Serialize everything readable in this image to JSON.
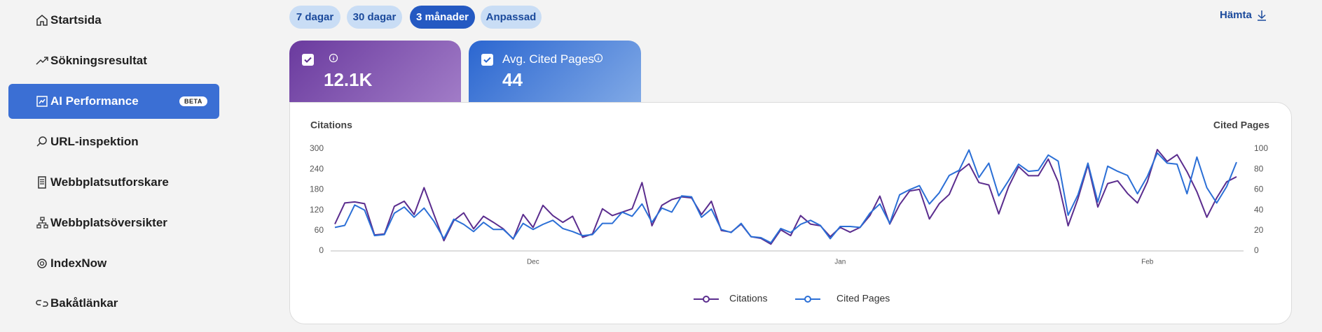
{
  "sidebar": {
    "items": [
      {
        "label": "Startsida"
      },
      {
        "label": "Sökningsresultat"
      },
      {
        "label": "AI Performance",
        "badge": "BETA"
      },
      {
        "label": "URL-inspektion"
      },
      {
        "label": "Webbplatsutforskare"
      },
      {
        "label": "Webbplatsöversikter"
      },
      {
        "label": "IndexNow"
      },
      {
        "label": "Bakåtlänkar"
      }
    ]
  },
  "filters": [
    "7 dagar",
    "30 dagar",
    "3 månader",
    "Anpassad"
  ],
  "download": "Hämta",
  "cards": [
    {
      "value": "12.1K"
    },
    {
      "label": "Avg. Cited Pages",
      "value": "44"
    }
  ],
  "chart_data": {
    "type": "line",
    "y_label": "Citations",
    "y2_label": "Cited Pages",
    "categories": [
      null,
      null,
      null,
      null,
      null,
      null,
      null,
      null,
      null,
      null,
      null,
      null,
      null,
      null,
      null,
      null,
      null,
      null,
      null,
      null,
      "Dec",
      null,
      null,
      null,
      null,
      null,
      null,
      null,
      null,
      null,
      null,
      null,
      null,
      null,
      null,
      null,
      null,
      null,
      null,
      null,
      null,
      null,
      null,
      null,
      null,
      null,
      null,
      null,
      null,
      null,
      null,
      "Jan",
      null,
      null,
      null,
      null,
      null,
      null,
      null,
      null,
      null,
      null,
      null,
      null,
      null,
      null,
      null,
      null,
      null,
      null,
      null,
      null,
      null,
      null,
      null,
      null,
      null,
      null,
      null,
      null,
      null,
      null,
      "Feb",
      null,
      null,
      null,
      null,
      null,
      null,
      null,
      null,
      null
    ],
    "series": [
      {
        "name": "Citations",
        "color": "#5b2d8e",
        "values": [
          79,
          141,
          144,
          139,
          47,
          50,
          131,
          146,
          107,
          186,
          107,
          30,
          89,
          112,
          65,
          102,
          84,
          65,
          35,
          107,
          69,
          134,
          104,
          84,
          102,
          40,
          50,
          124,
          104,
          114,
          124,
          201,
          74,
          134,
          151,
          159,
          156,
          107,
          146,
          60,
          55,
          79,
          42,
          37,
          20,
          62,
          45,
          104,
          79,
          74,
          42,
          69,
          55,
          69,
          104,
          161,
          79,
          136,
          176,
          181,
          94,
          139,
          166,
          233,
          256,
          201,
          194,
          109,
          189,
          248,
          221,
          221,
          270,
          203,
          74,
          154,
          253,
          129,
          198,
          206,
          169,
          141,
          203,
          298,
          263,
          283,
          233,
          174,
          99,
          156,
          203,
          218
        ]
      },
      {
        "name": "Cited Pages",
        "color": "#2b6fd6",
        "axis": "y2",
        "values": [
          23,
          25,
          45,
          40,
          15,
          16,
          37,
          43,
          33,
          42,
          29,
          12,
          31,
          26,
          19,
          28,
          21,
          21,
          12,
          27,
          21,
          26,
          30,
          22,
          19,
          15,
          16,
          27,
          27,
          38,
          34,
          46,
          28,
          42,
          38,
          54,
          53,
          33,
          41,
          21,
          18,
          27,
          14,
          13,
          8,
          22,
          18,
          26,
          30,
          25,
          12,
          24,
          24,
          23,
          37,
          46,
          27,
          55,
          60,
          64,
          46,
          57,
          74,
          79,
          99,
          72,
          86,
          54,
          69,
          85,
          78,
          79,
          94,
          88,
          35,
          55,
          86,
          48,
          83,
          78,
          74,
          56,
          73,
          96,
          86,
          85,
          56,
          92,
          62,
          47,
          63,
          87
        ]
      }
    ],
    "ylim": [
      0,
      300
    ],
    "yticks": [
      0,
      60,
      120,
      180,
      240,
      300
    ],
    "y2lim": [
      0,
      100
    ],
    "y2ticks": [
      0,
      20,
      40,
      60,
      80,
      100
    ],
    "grid": false,
    "legend": "bottom"
  }
}
